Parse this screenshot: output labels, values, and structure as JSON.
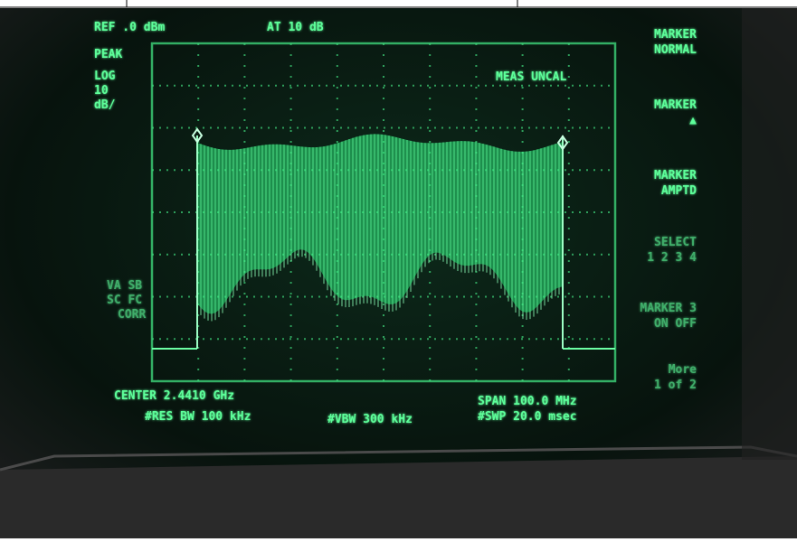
{
  "screen": {
    "ref_level": "REF .0 dBm",
    "attenuation": "AT 10 dB",
    "detector": "PEAK",
    "scale": [
      "LOG",
      "10",
      "dB/"
    ],
    "status": "MEAS UNCAL",
    "left_flags": [
      "VA SB",
      "SC FC",
      "CORR"
    ],
    "center": "CENTER 2.4410 GHz",
    "res_bw": "#RES BW 100 kHz",
    "vbw": "#VBW 300 kHz",
    "span": "SPAN 100.0 MHz",
    "sweep": "#SWP 20.0 msec"
  },
  "softkeys": [
    {
      "lines": [
        "MARKER",
        "NORMAL"
      ]
    },
    {
      "lines": [
        "MARKER",
        "▲"
      ]
    },
    {
      "lines": [
        "MARKER",
        "AMPTD"
      ]
    },
    {
      "lines": [
        "SELECT",
        "1 2 3 4"
      ]
    },
    {
      "lines": [
        "MARKER 3",
        "ON OFF"
      ]
    },
    {
      "lines": [
        "More",
        "1 of 2"
      ]
    }
  ]
}
